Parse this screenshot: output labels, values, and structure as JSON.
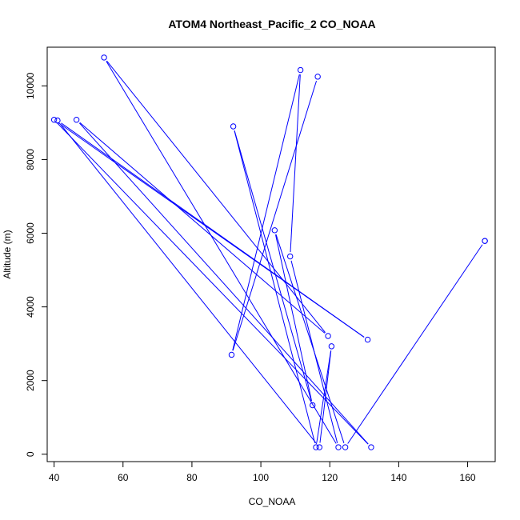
{
  "chart_data": {
    "type": "line",
    "title": "ATOM4 Northeast_Pacific_2 CO_NOAA",
    "xlabel": "CO_NOAA",
    "ylabel": "Altitude (m)",
    "xlim": [
      38,
      168
    ],
    "ylim": [
      -200,
      11050
    ],
    "x_ticks": [
      40,
      60,
      80,
      100,
      120,
      140,
      160
    ],
    "y_ticks": [
      0,
      2000,
      4000,
      6000,
      8000,
      10000
    ],
    "grid": false,
    "legend": "none",
    "series": [
      {
        "color": "#0000ff",
        "points": [
          [
            116.5,
            10250
          ],
          [
            91.5,
            2700
          ],
          [
            111.5,
            10430
          ],
          [
            108.5,
            5370
          ],
          [
            122.5,
            190
          ],
          [
            54.5,
            10770
          ],
          [
            119.5,
            3210
          ],
          [
            46.5,
            9080
          ],
          [
            132,
            190
          ],
          [
            40,
            9080
          ],
          [
            131,
            3110
          ],
          [
            41,
            9060
          ],
          [
            117,
            190
          ],
          [
            120.5,
            2930
          ],
          [
            116,
            190
          ],
          [
            92,
            8900
          ],
          [
            115,
            1330
          ],
          [
            104,
            6080
          ],
          [
            124.5,
            190
          ],
          [
            165,
            5790
          ],
          [
            165,
            5790
          ]
        ]
      }
    ]
  }
}
